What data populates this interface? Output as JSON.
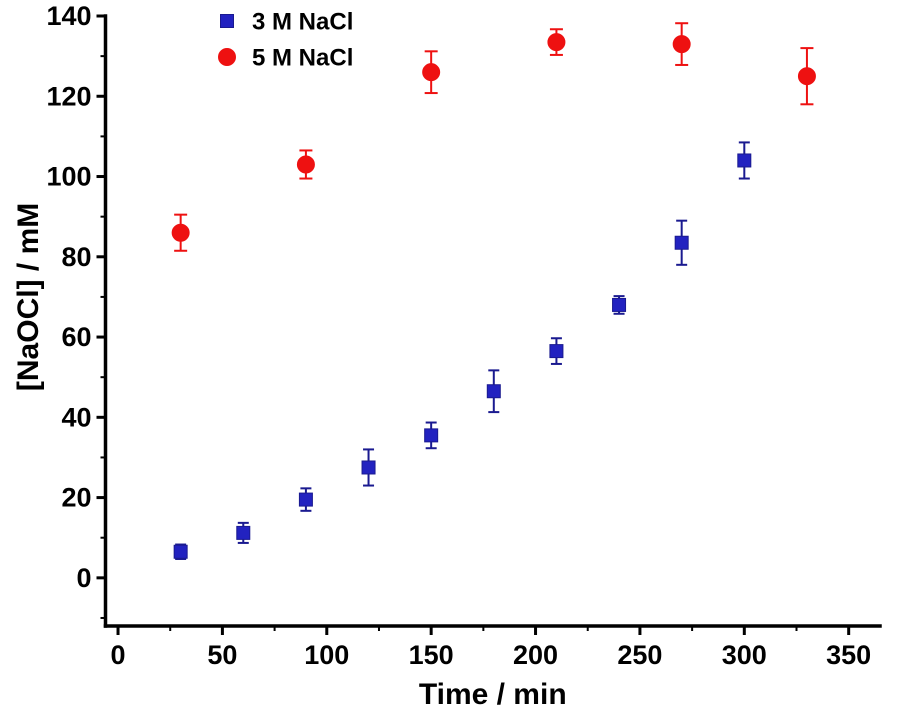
{
  "figure": {
    "background": "#ffffff"
  },
  "chart_data": {
    "type": "scatter",
    "title": "",
    "xlabel": "Time / min",
    "ylabel": "[NaOCl] / mM",
    "xlim": [
      -6,
      365
    ],
    "ylim": [
      -12,
      140
    ],
    "x_ticks": [
      0,
      50,
      100,
      150,
      200,
      250,
      300,
      350
    ],
    "x_minor_step": 25,
    "y_ticks": [
      0,
      20,
      40,
      60,
      80,
      100,
      120,
      140
    ],
    "y_minor_step": 10,
    "grid": false,
    "legend_position": "top-left-inside",
    "axis_color": "#000000",
    "series": [
      {
        "name": "3 M NaCl",
        "marker": "square",
        "color": "#2222c0",
        "error_color": "#1a1a90",
        "x": [
          30,
          60,
          90,
          120,
          150,
          180,
          210,
          240,
          270,
          300
        ],
        "y": [
          6.5,
          11.2,
          19.5,
          27.5,
          35.5,
          46.5,
          56.5,
          68.0,
          83.5,
          104.0
        ],
        "yerr": [
          1.8,
          2.5,
          2.8,
          4.5,
          3.2,
          5.2,
          3.2,
          2.2,
          5.5,
          4.5
        ]
      },
      {
        "name": "5 M NaCl",
        "marker": "circle",
        "color": "#ee1111",
        "error_color": "#ee1111",
        "x": [
          30,
          90,
          150,
          210,
          270,
          330
        ],
        "y": [
          86.0,
          103.0,
          126.0,
          133.5,
          133.0,
          125.0
        ],
        "yerr": [
          4.5,
          3.5,
          5.2,
          3.2,
          5.2,
          7.0
        ]
      }
    ]
  }
}
